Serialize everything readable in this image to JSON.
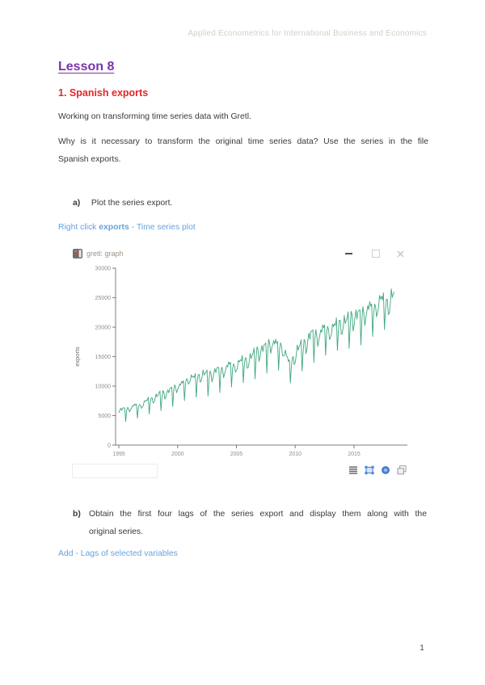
{
  "document": {
    "header": "Applied Econometrics for International Business and Economics",
    "page_number": "1"
  },
  "lesson": {
    "title": "Lesson 8",
    "section_heading": "1. Spanish exports",
    "para1": "Working on transforming time series data with Gretl.",
    "para2_lines": [
      "Why is it necessary to transform the original time series data? Use the series in the file",
      "Spanish exports."
    ],
    "item_a": {
      "label": "a)",
      "text": "Plot the series export."
    },
    "instruction_a": {
      "prefix": "Right click ",
      "highlight": "exports",
      "suffix": " - Time series plot"
    },
    "item_b": {
      "label": "b)",
      "lines": [
        "Obtain the first four lags of the series export and display them along with the",
        "original series."
      ]
    },
    "instruction_b": "Add - Lags of selected variables"
  },
  "gretl_window": {
    "title": "gretl: graph",
    "controls": [
      "minimize",
      "maximize",
      "close"
    ],
    "statusbar": {
      "field_text": "",
      "icons": [
        "menu",
        "select-region",
        "pan",
        "copy-windows"
      ]
    }
  },
  "chart_data": {
    "type": "line",
    "title": "",
    "xlabel": "",
    "ylabel": "exports",
    "frequency": "monthly",
    "x_start": 1995,
    "months": 282,
    "x_ticks": [
      1995,
      2000,
      2005,
      2010,
      2015
    ],
    "y_ticks": [
      0,
      5000,
      10000,
      15000,
      20000,
      25000,
      30000
    ],
    "x_range": [
      1995,
      2018.5
    ],
    "y_range": [
      0,
      30000
    ],
    "grid": false,
    "legend": "none",
    "line_color": "#3ea77d",
    "annual_levels": [
      [
        1995,
        5700
      ],
      [
        1996,
        6200
      ],
      [
        1997,
        6800
      ],
      [
        1998,
        7900
      ],
      [
        1999,
        8700
      ],
      [
        2000,
        9700
      ],
      [
        2001,
        11000
      ],
      [
        2002,
        11500
      ],
      [
        2003,
        11900
      ],
      [
        2004,
        12700
      ],
      [
        2005,
        13400
      ],
      [
        2006,
        14200
      ],
      [
        2007,
        15700
      ],
      [
        2008,
        16900
      ],
      [
        2008.8,
        16600
      ],
      [
        2009.5,
        13400
      ],
      [
        2010,
        15000
      ],
      [
        2011,
        17500
      ],
      [
        2012,
        18600
      ],
      [
        2013,
        19300
      ],
      [
        2014,
        20200
      ],
      [
        2015,
        21200
      ],
      [
        2016,
        22100
      ],
      [
        2017,
        23400
      ],
      [
        2018,
        24100
      ],
      [
        2019,
        24800
      ]
    ],
    "seasonal_factors": [
      0.95,
      1.0,
      1.07,
      1.02,
      1.06,
      1.05,
      1.08,
      0.75,
      0.97,
      1.06,
      1.03,
      0.92
    ],
    "august_factor": {
      "start": 0.68,
      "end": 0.82
    },
    "noise_terms": [
      [
        0.018,
        1.7,
        0
      ],
      [
        0.012,
        0.45,
        1.0
      ]
    ],
    "description": "Monthly Spanish exports, Jan 1995 to mid 2018: upward trend from about 5500 to about 25000 with pronounced August seasonal dips and a drop during the 2008-2009 crisis."
  },
  "colors": {
    "header_text": "#cbd4c6",
    "lesson_title": "#7a34a7",
    "section_heading": "#e52528",
    "body_text": "#3a3a3a",
    "instruction_blue": "#66a3db",
    "chart_line": "#3ea77d",
    "axis": "#7d7d7d",
    "tick_labels": "#8e8e8e"
  }
}
